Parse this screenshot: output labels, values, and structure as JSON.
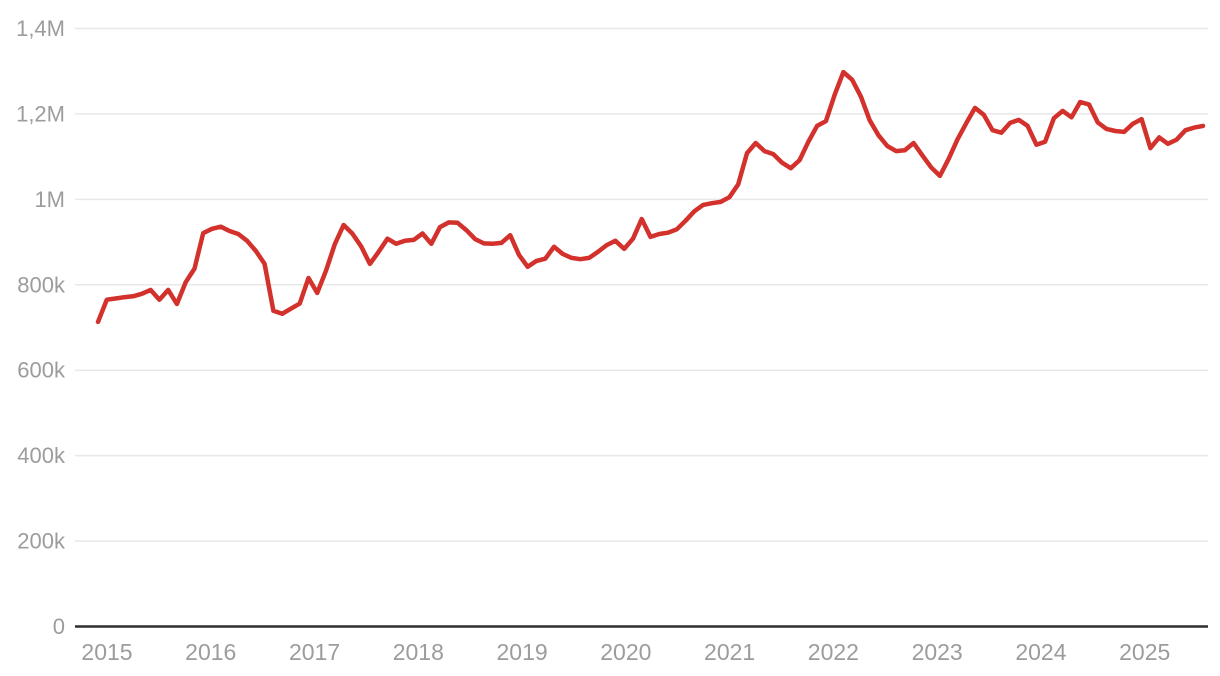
{
  "chart_data": {
    "type": "line",
    "title": "",
    "subtitle": "",
    "legend": "none",
    "grid": "horizontal",
    "x_axis": {
      "frequency": "monthly",
      "start_year": 2015,
      "start_month": 1,
      "end_year": 2025,
      "end_month": 7,
      "tick_labels": [
        "2015",
        "2016",
        "2017",
        "2018",
        "2019",
        "2020",
        "2021",
        "2022",
        "2023",
        "2024",
        "2025"
      ]
    },
    "y_axis": {
      "ylim": [
        0,
        1400000
      ],
      "tick_values": [
        0,
        200000,
        400000,
        600000,
        800000,
        1000000,
        1200000,
        1400000
      ],
      "tick_labels": [
        "0",
        "200k",
        "400k",
        "600k",
        "800k",
        "1M",
        "1,2M",
        "1,4M"
      ]
    },
    "series": [
      {
        "name": "monthly-value",
        "color": "#d2312c",
        "values": [
          713000,
          765000,
          768000,
          771000,
          773000,
          779000,
          788000,
          765000,
          788000,
          755000,
          806000,
          838000,
          921000,
          931000,
          936000,
          926000,
          919000,
          903000,
          879000,
          849000,
          739000,
          732000,
          744000,
          756000,
          816000,
          781000,
          833000,
          895000,
          940000,
          920000,
          890000,
          849000,
          877000,
          908000,
          896000,
          903000,
          905000,
          920000,
          896000,
          935000,
          946000,
          945000,
          928000,
          907000,
          897000,
          896000,
          898000,
          916000,
          870000,
          842000,
          856000,
          861000,
          889000,
          872000,
          863000,
          860000,
          863000,
          877000,
          893000,
          903000,
          884000,
          908000,
          954000,
          912000,
          919000,
          922000,
          930000,
          950000,
          972000,
          987000,
          991000,
          994000,
          1005000,
          1035000,
          1108000,
          1132000,
          1113000,
          1106000,
          1086000,
          1073000,
          1092000,
          1135000,
          1172000,
          1183000,
          1245000,
          1298000,
          1280000,
          1240000,
          1185000,
          1150000,
          1125000,
          1113000,
          1115000,
          1132000,
          1103000,
          1075000,
          1055000,
          1095000,
          1140000,
          1178000,
          1214000,
          1198000,
          1162000,
          1156000,
          1179000,
          1186000,
          1172000,
          1128000,
          1135000,
          1190000,
          1207000,
          1192000,
          1228000,
          1222000,
          1180000,
          1165000,
          1160000,
          1158000,
          1177000,
          1188000,
          1120000,
          1145000,
          1130000,
          1140000,
          1162000,
          1168000,
          1172000
        ]
      }
    ],
    "colors": {
      "line": "#d2312c",
      "gridline": "#e8e8e8",
      "axis_line": "#2e2e2e",
      "tick_label": "#9c9c9c",
      "background": "#ffffff"
    }
  }
}
